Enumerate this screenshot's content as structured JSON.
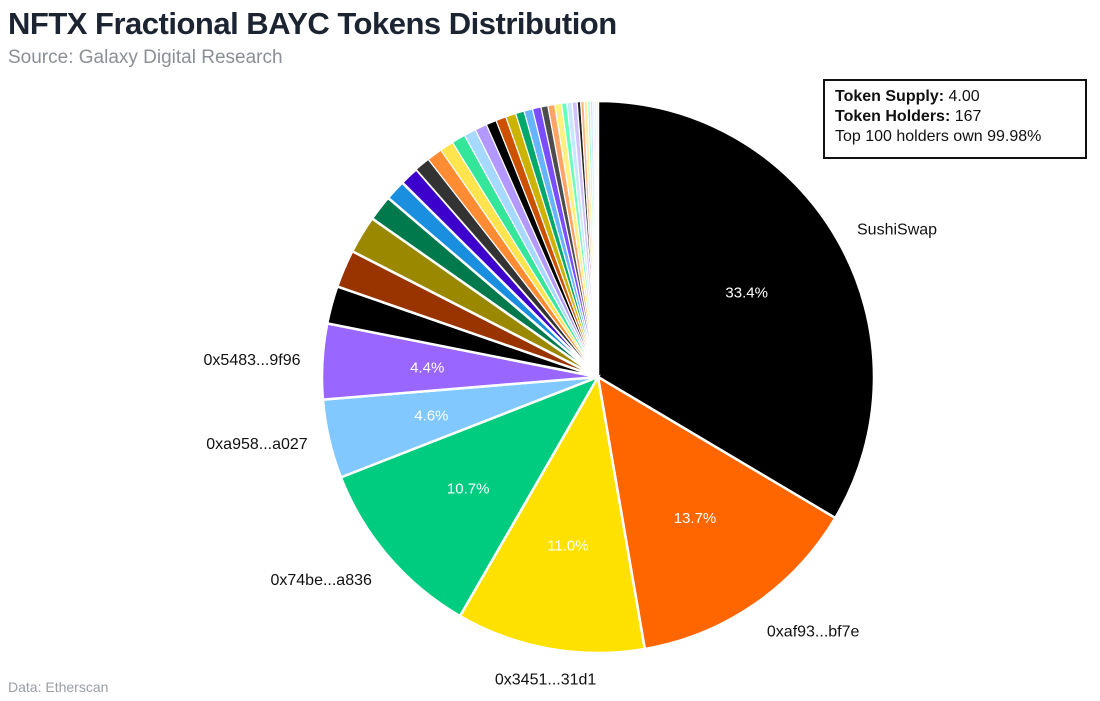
{
  "header": {
    "title": "NFTX Fractional BAYC Tokens Distribution",
    "subtitle": "Source: Galaxy Digital Research"
  },
  "footer": {
    "source": "Data: Etherscan"
  },
  "infobox": {
    "supply_label": "Token Supply:",
    "supply_value": "4.00",
    "holders_label": "Token Holders:",
    "holders_value": "167",
    "top_note": "Top 100 holders own 99.98%"
  },
  "chart_data": {
    "type": "pie",
    "title": "NFTX Fractional BAYC Tokens Distribution",
    "start_angle_deg": 0,
    "direction": "clockwise",
    "slices": [
      {
        "label": "SushiSwap",
        "value": 33.4,
        "display": "33.4%",
        "color": "#000000"
      },
      {
        "label": "0xaf93...bf7e",
        "value": 13.7,
        "display": "13.7%",
        "color": "#ff6600"
      },
      {
        "label": "0x3451...31d1",
        "value": 11.0,
        "display": "11.0%",
        "color": "#ffe100"
      },
      {
        "label": "0x74be...a836",
        "value": 10.7,
        "display": "10.7%",
        "color": "#00cc80"
      },
      {
        "label": "0xa958...a027",
        "value": 4.6,
        "display": "4.6%",
        "color": "#80c8ff"
      },
      {
        "label": "0x5483...9f96",
        "value": 4.4,
        "display": "4.4%",
        "color": "#9966ff"
      },
      {
        "label": "",
        "value": 2.2,
        "display": "",
        "color": "#000000"
      },
      {
        "label": "",
        "value": 2.2,
        "display": "",
        "color": "#993300"
      },
      {
        "label": "",
        "value": 2.2,
        "display": "",
        "color": "#998800"
      },
      {
        "label": "",
        "value": 1.5,
        "display": "",
        "color": "#007a4d"
      },
      {
        "label": "",
        "value": 1.2,
        "display": "",
        "color": "#1a8fe0"
      },
      {
        "label": "",
        "value": 1.1,
        "display": "",
        "color": "#3d00cc"
      },
      {
        "label": "",
        "value": 0.9,
        "display": "",
        "color": "#333333"
      },
      {
        "label": "",
        "value": 0.9,
        "display": "",
        "color": "#ff8c33"
      },
      {
        "label": "",
        "value": 0.8,
        "display": "",
        "color": "#ffe44d"
      },
      {
        "label": "",
        "value": 0.8,
        "display": "",
        "color": "#33e699"
      },
      {
        "label": "",
        "value": 0.7,
        "display": "",
        "color": "#a6d9ff"
      },
      {
        "label": "",
        "value": 0.7,
        "display": "",
        "color": "#b399ff"
      },
      {
        "label": "",
        "value": 0.6,
        "display": "",
        "color": "#000000"
      },
      {
        "label": "",
        "value": 0.6,
        "display": "",
        "color": "#cc5200"
      },
      {
        "label": "",
        "value": 0.6,
        "display": "",
        "color": "#ccb300"
      },
      {
        "label": "",
        "value": 0.5,
        "display": "",
        "color": "#00a86b"
      },
      {
        "label": "",
        "value": 0.5,
        "display": "",
        "color": "#66b3ff"
      },
      {
        "label": "",
        "value": 0.5,
        "display": "",
        "color": "#7a4dff"
      },
      {
        "label": "",
        "value": 0.4,
        "display": "",
        "color": "#4d4d4d"
      },
      {
        "label": "",
        "value": 0.4,
        "display": "",
        "color": "#ffa366"
      },
      {
        "label": "",
        "value": 0.4,
        "display": "",
        "color": "#fff080"
      },
      {
        "label": "",
        "value": 0.3,
        "display": "",
        "color": "#66ffbb"
      },
      {
        "label": "",
        "value": 0.3,
        "display": "",
        "color": "#c7e6ff"
      },
      {
        "label": "",
        "value": 0.3,
        "display": "",
        "color": "#d1c2ff"
      },
      {
        "label": "",
        "value": 0.2,
        "display": "",
        "color": "#222222"
      },
      {
        "label": "",
        "value": 0.2,
        "display": "",
        "color": "#ffb380"
      },
      {
        "label": "",
        "value": 0.2,
        "display": "",
        "color": "#ffeb99"
      },
      {
        "label": "",
        "value": 0.15,
        "display": "",
        "color": "#99ffcc"
      },
      {
        "label": "",
        "value": 0.15,
        "display": "",
        "color": "#cce5ff"
      },
      {
        "label": "",
        "value": 0.1,
        "display": "",
        "color": "#e0d6ff"
      },
      {
        "label": "",
        "value": 0.1,
        "display": "",
        "color": "#ffcc99"
      },
      {
        "label": "",
        "value": 0.1,
        "display": "",
        "color": "#ffd9b3"
      }
    ]
  }
}
